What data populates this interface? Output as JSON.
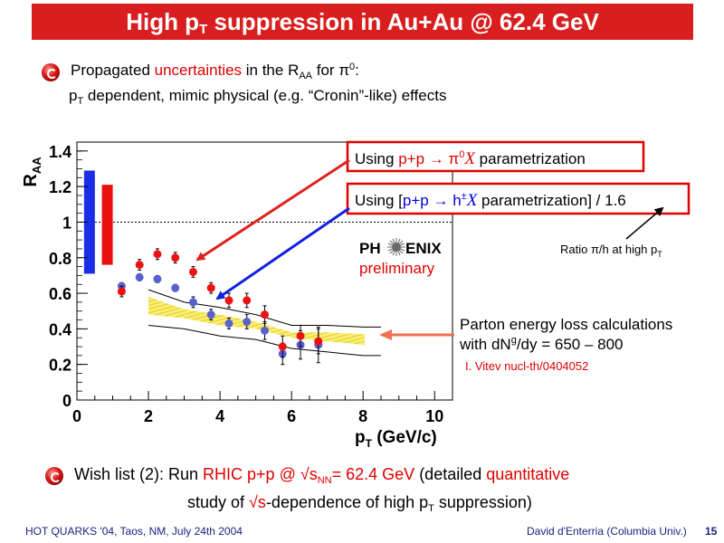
{
  "slide": {
    "title_main": "High p",
    "title_sub": "T",
    "title_rest": " suppression in Au+Au @ 62.4 GeV"
  },
  "bullet1": {
    "t1": "Propagated ",
    "t2": "uncertainties",
    "t3": " in the R",
    "t4": "AA",
    "t5": " for π",
    "t6": "0",
    "t7": ":",
    "line2_a": "p",
    "line2_b": "T",
    "line2_c": " dependent, mimic physical (e.g. “Cronin”-like) effects"
  },
  "wish": {
    "a": "Wish list (2): Run ",
    "b": "RHIC p+p @ √s",
    "c": "NN",
    "d": "=  62.4 GeV",
    "e": " (detailed ",
    "f": "quantitative",
    "g": "study of ",
    "h": "√s",
    "i": "-dependence of high p",
    "j": "T",
    "k": " suppression)"
  },
  "footer": {
    "left": "HOT QUARKS '04, Taos, NM, July 24th 2004",
    "right": "David d'Enterria (Columbia Univ.)",
    "page": "15"
  },
  "annotations": {
    "box1_a": "Using ",
    "box1_b": "p+p → π",
    "box1_c": "0",
    "box1_d": "X",
    "box1_e": "  parametrization",
    "box2_a": "Using [",
    "box2_b": "p+p → h",
    "box2_c": "±",
    "box2_d": "X",
    "box2_e": " parametrization] / 1.6",
    "ratio_a": "Ratio π/h at high p",
    "ratio_b": "T",
    "phenix_a": "PH",
    "phenix_b": "ENIX",
    "preliminary": "preliminary",
    "parton1": "Parton energy loss calculations",
    "parton2a": "with dN",
    "parton2b": "g",
    "parton2c": "/dy = 650 – 800",
    "vitev": "I. Vitev nucl-th/0404052"
  },
  "colors": {
    "title_bg": "#d81e1e",
    "red_points": "#ee1111",
    "blue_points": "#5a60d0",
    "band_fill": "#f5ec6a",
    "band_hatch": "#e8c800",
    "red_arrow": "#e02020",
    "blue_arrow": "#1020e0",
    "orange_arrow": "#f07050"
  },
  "chart_data": {
    "type": "scatter",
    "xlabel": "p",
    "xlabel_sub": "T",
    "xlabel_unit": " (GeV/c)",
    "ylabel": "R",
    "ylabel_sub": "AA",
    "xlim": [
      0,
      10.5
    ],
    "ylim": [
      0,
      1.45
    ],
    "x_ticks": [
      0,
      2,
      4,
      6,
      8,
      10
    ],
    "y_ticks": [
      0,
      0.2,
      0.4,
      0.6,
      0.8,
      1,
      1.2,
      1.4
    ],
    "y_tick_labels": [
      "0",
      "0.2",
      "0.4",
      "0.6",
      "0.8",
      "1",
      "1.2",
      "1.4"
    ],
    "reference_line": 1,
    "series": [
      {
        "color": "red",
        "x": [
          1.25,
          1.75,
          2.25,
          2.75,
          3.25,
          3.75,
          4.25,
          4.75,
          5.25,
          5.75,
          6.25,
          6.75
        ],
        "y": [
          0.61,
          0.76,
          0.82,
          0.8,
          0.72,
          0.63,
          0.56,
          0.56,
          0.48,
          0.3,
          0.36,
          0.33
        ],
        "err": [
          0.03,
          0.03,
          0.03,
          0.03,
          0.03,
          0.03,
          0.04,
          0.04,
          0.05,
          0.06,
          0.06,
          0.07
        ]
      },
      {
        "color": "blue",
        "x": [
          1.25,
          1.75,
          2.25,
          2.75,
          3.25,
          3.75,
          4.25,
          4.75,
          5.25,
          5.75,
          6.25,
          6.75
        ],
        "y": [
          0.64,
          0.69,
          0.68,
          0.63,
          0.55,
          0.48,
          0.43,
          0.44,
          0.39,
          0.26,
          0.31,
          0.31
        ],
        "err": [
          0.02,
          0.02,
          0.02,
          0.02,
          0.03,
          0.03,
          0.03,
          0.04,
          0.05,
          0.06,
          0.08,
          0.1
        ]
      }
    ],
    "systematic_boxes": [
      {
        "color": "blue",
        "x": 0.35,
        "y_low": 0.71,
        "y_high": 1.29
      },
      {
        "color": "red",
        "x": 0.85,
        "y_low": 0.76,
        "y_high": 1.21
      }
    ],
    "theory_band": {
      "x": [
        2.0,
        3.0,
        4.0,
        5.0,
        6.0,
        7.0,
        8.0
      ],
      "upper": [
        0.62,
        0.55,
        0.52,
        0.48,
        0.42,
        0.42,
        0.41
      ],
      "lower": [
        0.42,
        0.4,
        0.36,
        0.34,
        0.29,
        0.27,
        0.25
      ],
      "band_x_end": 8.5
    }
  }
}
